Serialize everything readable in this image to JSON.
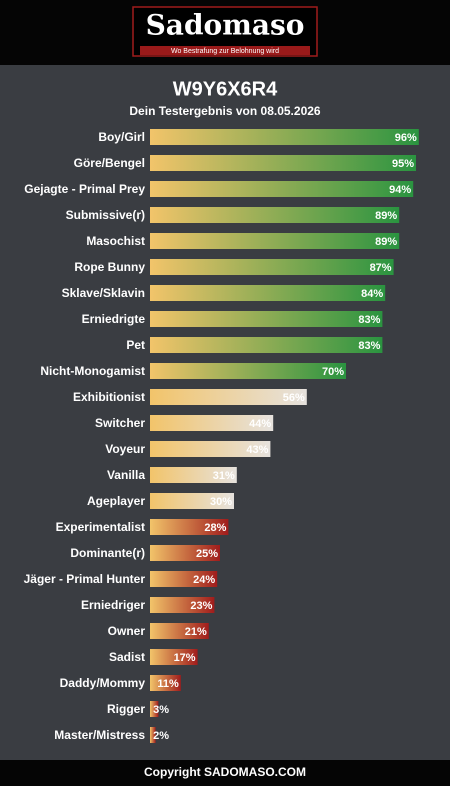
{
  "header": {
    "logo": "Sadomaso",
    "tagline": "Wo Bestrafung zur Belohnung wird"
  },
  "chart_data": {
    "type": "hbar",
    "title": "W9Y6X6R4",
    "subtitle": "Dein Testergebnis von 08.05.2026",
    "categories": [
      "Boy/Girl",
      "Göre/Bengel",
      "Gejagte - Primal Prey",
      "Submissive(r)",
      "Masochist",
      "Rope Bunny",
      "Sklave/Sklavin",
      "Erniedrigte",
      "Pet",
      "Nicht-Monogamist",
      "Exhibitionist",
      "Switcher",
      "Voyeur",
      "Vanilla",
      "Ageplayer",
      "Experimentalist",
      "Dominante(r)",
      "Jäger - Primal Hunter",
      "Erniedriger",
      "Owner",
      "Sadist",
      "Daddy/Mommy",
      "Rigger",
      "Master/Mistress"
    ],
    "values": [
      96,
      95,
      94,
      89,
      89,
      87,
      84,
      83,
      83,
      70,
      56,
      44,
      43,
      31,
      30,
      28,
      25,
      24,
      23,
      21,
      17,
      11,
      3,
      2
    ],
    "value_labels": [
      "96%",
      "95%",
      "94%",
      "89%",
      "89%",
      "87%",
      "84%",
      "83%",
      "83%",
      "70%",
      "56%",
      "44%",
      "43%",
      "31%",
      "30%",
      "28%",
      "25%",
      "24%",
      "23%",
      "21%",
      "17%",
      "11%",
      "3%",
      "2%"
    ],
    "gradient_start": "#f2c46a",
    "colors": [
      "#2a9440",
      "#2a9440",
      "#2a9440",
      "#2a9440",
      "#2a9440",
      "#2a9440",
      "#2a9440",
      "#2a9440",
      "#2a9440",
      "#2a9440",
      "#e6e2de",
      "#e6e2de",
      "#e6e2de",
      "#e6e2de",
      "#e6e2de",
      "#a01c1c",
      "#a01c1c",
      "#a01c1c",
      "#a01c1c",
      "#a01c1c",
      "#a01c1c",
      "#a01c1c",
      "#a01c1c",
      "#a01c1c"
    ],
    "xlim": [
      0,
      100
    ]
  },
  "footer": {
    "copyright": "Copyright SADOMASO.COM"
  }
}
